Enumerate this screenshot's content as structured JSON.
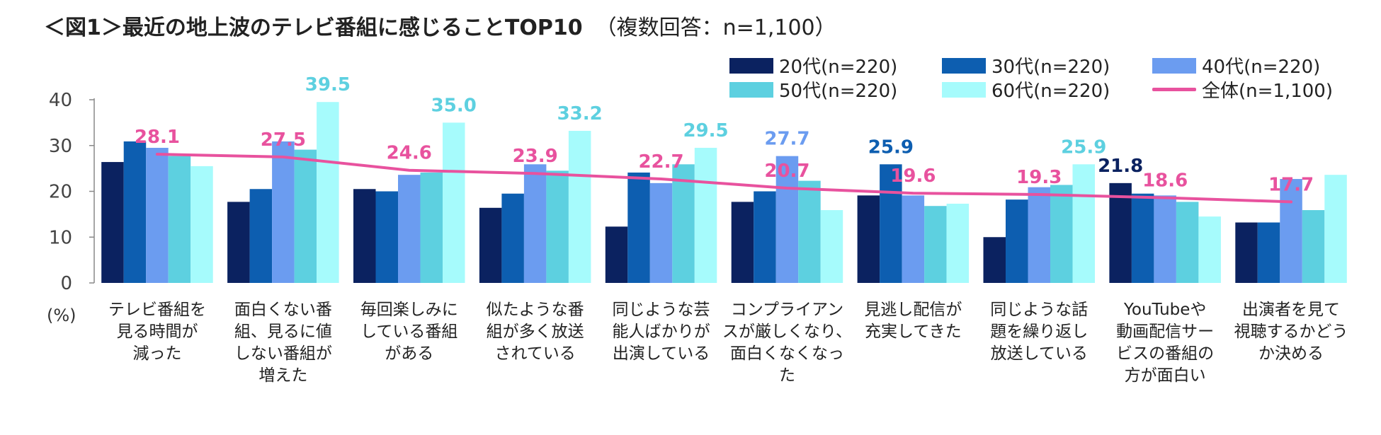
{
  "title": {
    "main": "＜図1＞最近の地上波のテレビ番組に感じることTOP10",
    "sub": "（複数回答：n=1,100）"
  },
  "unit_label": "(%)",
  "colors": {
    "s20": "#0b2260",
    "s30": "#0d5eb0",
    "s40": "#6b9cf0",
    "s50": "#5dd0e0",
    "s60": "#a6fbfc",
    "total": "#e8529e"
  },
  "chart_data": {
    "type": "bar",
    "title": "＜図1＞最近の地上波のテレビ番組に感じることTOP10（複数回答：n=1,100）",
    "ylabel": "(%)",
    "ylim": [
      0,
      40
    ],
    "yticks": [
      0,
      10,
      20,
      30,
      40
    ],
    "categories": [
      [
        "テレビ番組を",
        "見る時間が",
        "減った"
      ],
      [
        "面白くない番",
        "組、見るに値",
        "しない番組が",
        "増えた"
      ],
      [
        "毎回楽しみに",
        "している番組",
        "がある"
      ],
      [
        "似たような番",
        "組が多く放送",
        "されている"
      ],
      [
        "同じような芸",
        "能人ばかりが",
        "出演している"
      ],
      [
        "コンプライアン",
        "スが厳しくなり、",
        "面白くなくなっ",
        "た"
      ],
      [
        "見逃し配信が",
        "充実してきた"
      ],
      [
        "同じような話",
        "題を繰り返し",
        "放送している"
      ],
      [
        "YouTubeや",
        "動画配信サー",
        "ビスの番組の",
        "方が面白い"
      ],
      [
        "出演者を見て",
        "視聴するかどう",
        "か決める"
      ]
    ],
    "series": [
      {
        "name": "20代(n=220)",
        "color_key": "s20",
        "values": [
          26.4,
          17.7,
          20.5,
          16.4,
          12.3,
          17.7,
          19.1,
          10.0,
          21.8,
          13.2
        ]
      },
      {
        "name": "30代(n=220)",
        "color_key": "s30",
        "values": [
          30.9,
          20.5,
          20.0,
          19.5,
          24.1,
          20.0,
          25.9,
          18.2,
          19.5,
          13.2
        ]
      },
      {
        "name": "40代(n=220)",
        "color_key": "s40",
        "values": [
          29.5,
          30.9,
          23.6,
          25.9,
          21.8,
          27.7,
          19.1,
          20.9,
          19.1,
          22.7
        ]
      },
      {
        "name": "50代(n=220)",
        "color_key": "s50",
        "values": [
          27.7,
          29.1,
          24.1,
          24.5,
          25.9,
          22.3,
          16.8,
          21.4,
          17.7,
          15.9
        ]
      },
      {
        "name": "60代(n=220)",
        "color_key": "s60",
        "values": [
          25.5,
          39.5,
          35.0,
          33.2,
          29.5,
          15.9,
          17.3,
          25.9,
          14.5,
          23.6
        ]
      }
    ],
    "line": {
      "name": "全体(n=1,100)",
      "color_key": "total",
      "values": [
        28.1,
        27.5,
        24.6,
        23.9,
        22.7,
        20.7,
        19.6,
        19.3,
        18.6,
        17.7
      ]
    },
    "data_labels": [
      {
        "text": "28.1",
        "category": 0,
        "series": "line",
        "value": 28.1
      },
      {
        "text": "27.5",
        "category": 1,
        "series": "line",
        "value": 27.5
      },
      {
        "text": "39.5",
        "category": 1,
        "series": 4,
        "value": 39.5
      },
      {
        "text": "24.6",
        "category": 2,
        "series": "line",
        "value": 24.6
      },
      {
        "text": "35.0",
        "category": 2,
        "series": 4,
        "value": 35.0
      },
      {
        "text": "23.9",
        "category": 3,
        "series": "line",
        "value": 23.9
      },
      {
        "text": "33.2",
        "category": 3,
        "series": 4,
        "value": 33.2
      },
      {
        "text": "22.7",
        "category": 4,
        "series": "line",
        "value": 22.7
      },
      {
        "text": "29.5",
        "category": 4,
        "series": 4,
        "value": 29.5
      },
      {
        "text": "27.7",
        "category": 5,
        "series": 2,
        "value": 27.7
      },
      {
        "text": "20.7",
        "category": 5,
        "series": "line",
        "value": 20.7
      },
      {
        "text": "25.9",
        "category": 6,
        "series": 1,
        "value": 25.9
      },
      {
        "text": "19.6",
        "category": 6,
        "series": "line",
        "value": 19.6
      },
      {
        "text": "19.3",
        "category": 7,
        "series": "line",
        "value": 19.3
      },
      {
        "text": "25.9",
        "category": 7,
        "series": 4,
        "value": 25.9
      },
      {
        "text": "21.8",
        "category": 8,
        "series": 0,
        "value": 21.8
      },
      {
        "text": "18.6",
        "category": 8,
        "series": "line",
        "value": 18.6
      },
      {
        "text": "17.7",
        "category": 9,
        "series": "line",
        "value": 17.7
      }
    ],
    "legend_position": "top-right"
  }
}
